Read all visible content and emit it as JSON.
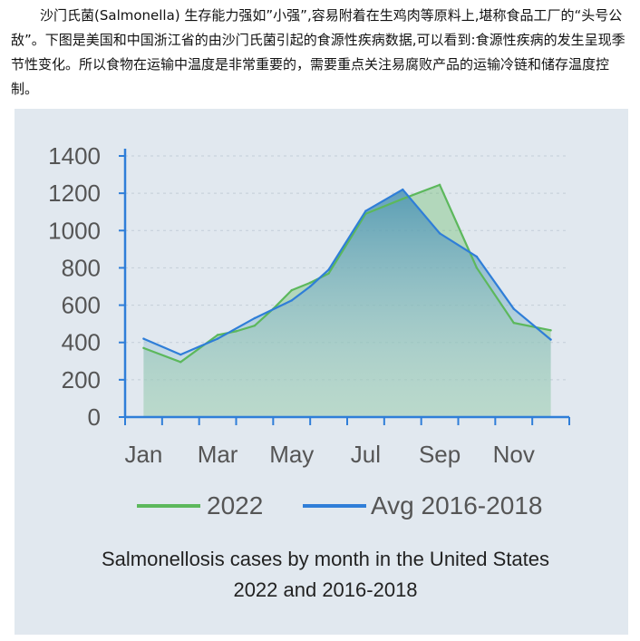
{
  "intro_text": "沙门氏菌(Salmonella) 生存能力强如”小强”,容易附着在生鸡肉等原料上,堪称食品工厂的“头号公敌”。下图是美国和中国浙江省的由沙门氏菌引起的食源性疾病数据,可以看到:食源性疾病的发生呈现季节性变化。所以食物在运输中温度是非常重要的，需要重点关注易腐败产品的运输冷链和储存温度控制。",
  "chart_data": {
    "type": "line",
    "title": "Salmonellosis cases by month in the United States",
    "subtitle": "2022 and 2016-2018",
    "xlabel": "",
    "ylabel": "",
    "x": [
      1,
      2,
      3,
      4,
      5,
      6,
      7,
      8,
      9,
      10,
      11,
      12
    ],
    "x_tick_labels": [
      "Jan",
      "Mar",
      "May",
      "Jul",
      "Sep",
      "Nov"
    ],
    "x_tick_months": [
      1,
      3,
      5,
      7,
      9,
      11
    ],
    "y_ticks": [
      0,
      200,
      400,
      600,
      800,
      1000,
      1200,
      1400
    ],
    "ylim": [
      0,
      1400
    ],
    "grid": true,
    "legend_position": "bottom",
    "series": [
      {
        "name": "2022",
        "color": "#5cb85c",
        "x": [
          1,
          2,
          3,
          3.5,
          4,
          4.5,
          5,
          5.5,
          6,
          7,
          8,
          9,
          10,
          11,
          12
        ],
        "values": [
          370,
          295,
          440,
          460,
          490,
          580,
          680,
          720,
          770,
          1090,
          1170,
          1245,
          800,
          505,
          465
        ]
      },
      {
        "name": "Avg 2016-2018",
        "color": "#2f7ed8",
        "x": [
          1,
          2,
          3,
          4,
          5,
          5.5,
          6,
          7,
          8,
          9,
          10,
          11,
          12
        ],
        "values": [
          420,
          335,
          420,
          530,
          625,
          700,
          790,
          1105,
          1220,
          985,
          860,
          580,
          415
        ]
      }
    ]
  }
}
